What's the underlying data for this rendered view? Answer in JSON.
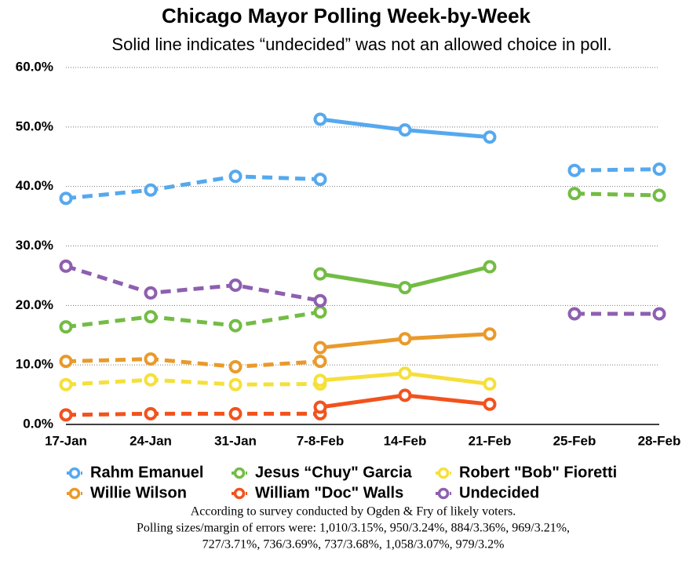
{
  "chart_data": {
    "type": "line",
    "title": "Chicago Mayor Polling Week-by-Week",
    "subtitle": "Solid line indicates “undecided” was not an allowed choice in poll.",
    "categories": [
      "17-Jan",
      "24-Jan",
      "31-Jan",
      "7-8-Feb",
      "14-Feb",
      "21-Feb",
      "25-Feb",
      "28-Feb"
    ],
    "series": [
      {
        "name": "Rahm Emanuel",
        "color": "#55a9ee",
        "values": [
          38.0,
          39.4,
          41.7,
          41.2,
          null,
          null,
          42.7,
          42.9
        ],
        "values_solid": [
          null,
          null,
          null,
          51.3,
          49.5,
          48.3,
          null,
          null
        ]
      },
      {
        "name": "Jesus “Chuy\" Garcia",
        "color": "#73bc44",
        "values": [
          16.4,
          18.1,
          16.6,
          18.9,
          null,
          null,
          38.8,
          38.5
        ],
        "values_solid": [
          null,
          null,
          null,
          25.3,
          23.0,
          26.5,
          null,
          null
        ]
      },
      {
        "name": "Robert \"Bob\" Fioretti",
        "color": "#f5e03b",
        "values": [
          6.7,
          7.5,
          6.7,
          6.8,
          null,
          null,
          null,
          null
        ],
        "values_solid": [
          null,
          null,
          null,
          7.4,
          8.6,
          6.8,
          null,
          null
        ]
      },
      {
        "name": "Willie Wilson",
        "color": "#e99a2b",
        "values": [
          10.6,
          11.0,
          9.7,
          10.6,
          null,
          null,
          null,
          null
        ],
        "values_solid": [
          null,
          null,
          null,
          12.9,
          14.4,
          15.2,
          null,
          null
        ]
      },
      {
        "name": "William \"Doc\" Walls",
        "color": "#f2521d",
        "values": [
          1.6,
          1.8,
          1.8,
          1.8,
          null,
          null,
          null,
          null
        ],
        "values_solid": [
          null,
          null,
          null,
          2.9,
          4.9,
          3.4,
          null,
          null
        ]
      },
      {
        "name": "Undecided",
        "color": "#8e5fb0",
        "values": [
          26.6,
          22.1,
          23.4,
          20.8,
          null,
          null,
          18.6,
          18.6
        ],
        "values_solid": [
          null,
          null,
          null,
          null,
          null,
          null,
          null,
          null
        ]
      }
    ],
    "ylim": [
      0,
      60
    ],
    "yticks": [
      {
        "value": 0,
        "label": "0.0%"
      },
      {
        "value": 10,
        "label": "10.0%"
      },
      {
        "value": 20,
        "label": "20.0%"
      },
      {
        "value": 30,
        "label": "30.0%"
      },
      {
        "value": 40,
        "label": "40.0%"
      },
      {
        "value": 50,
        "label": "50.0%"
      },
      {
        "value": 60,
        "label": "60.0%"
      }
    ],
    "grid": true,
    "notes": [
      "According to survey conducted by Ogden & Fry of likely voters.",
      "Polling sizes/margin of errors were: 1,010/3.15%, 950/3.24%, 884/3.36%, 969/3.21%,",
      "727/3.71%, 736/3.69%, 737/3.68%, 1,058/3.07%, 979/3.2%"
    ]
  }
}
